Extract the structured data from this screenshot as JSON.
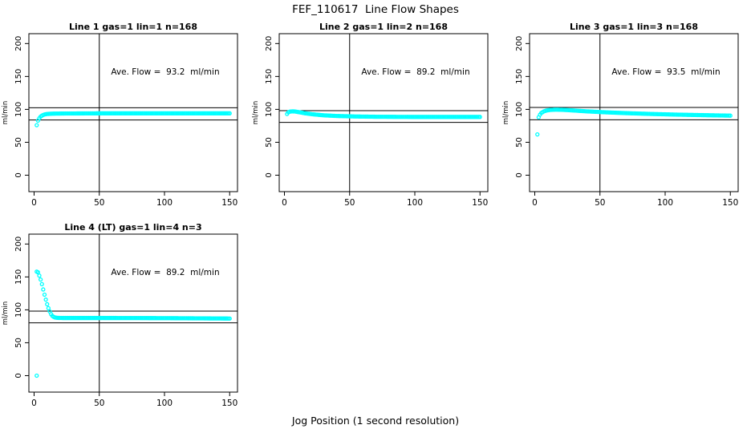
{
  "figure": {
    "title": "FEF_110617  Line Flow Shapes",
    "caption": "Jog Position (1 second resolution)",
    "colors": {
      "marker": "#00FFFF",
      "axis": "#000000",
      "background": "#FFFFFF"
    }
  },
  "chart_data": [
    {
      "type": "scatter",
      "title": "Line 1 gas=1 lin=1 n=168",
      "ave_flow": 93.2,
      "ave_flow_label": "Ave. Flow =  93.2  ml/min",
      "ylabel": "ml/min",
      "xticks": [
        0,
        50,
        100,
        150
      ],
      "yticks": [
        0,
        50,
        100,
        150,
        200
      ],
      "xlim": [
        -4,
        156
      ],
      "ylim": [
        -25,
        215
      ],
      "vline": 50,
      "hlines": [
        102.5,
        83.9
      ],
      "x_step": 1,
      "keypoints": [
        [
          3,
          83
        ],
        [
          4,
          86.5
        ],
        [
          5,
          89
        ],
        [
          6,
          90.5
        ],
        [
          7,
          91.5
        ],
        [
          8,
          92.3
        ],
        [
          10,
          93
        ],
        [
          14,
          93.5
        ],
        [
          20,
          93.7
        ],
        [
          30,
          93.8
        ],
        [
          50,
          94
        ],
        [
          100,
          94
        ],
        [
          150,
          94
        ]
      ],
      "outliers": [
        [
          2,
          76
        ]
      ]
    },
    {
      "type": "scatter",
      "title": "Line 2 gas=1 lin=2 n=168",
      "ave_flow": 89.2,
      "ave_flow_label": "Ave. Flow =  89.2  ml/min",
      "ylabel": "ml/min",
      "xticks": [
        0,
        50,
        100,
        150
      ],
      "yticks": [
        0,
        50,
        100,
        150,
        200
      ],
      "xlim": [
        -4,
        156
      ],
      "ylim": [
        -25,
        215
      ],
      "vline": 50,
      "hlines": [
        98.1,
        80.3
      ],
      "x_step": 1,
      "keypoints": [
        [
          2,
          93
        ],
        [
          3,
          95.5
        ],
        [
          4,
          96.5
        ],
        [
          6,
          97
        ],
        [
          8,
          96.8
        ],
        [
          12,
          95.5
        ],
        [
          16,
          94
        ],
        [
          22,
          92.5
        ],
        [
          30,
          91
        ],
        [
          40,
          90
        ],
        [
          55,
          89.2
        ],
        [
          70,
          88.8
        ],
        [
          100,
          88.5
        ],
        [
          150,
          88.5
        ]
      ],
      "outliers": []
    },
    {
      "type": "scatter",
      "title": "Line 3 gas=1 lin=3 n=168",
      "ave_flow": 93.5,
      "ave_flow_label": "Ave. Flow =  93.5  ml/min",
      "ylabel": "ml/min",
      "xticks": [
        0,
        50,
        100,
        150
      ],
      "yticks": [
        0,
        50,
        100,
        150,
        200
      ],
      "xlim": [
        -4,
        156
      ],
      "ylim": [
        -25,
        215
      ],
      "vline": 50,
      "hlines": [
        102.9,
        84.2
      ],
      "x_step": 1,
      "keypoints": [
        [
          3,
          88
        ],
        [
          4,
          92
        ],
        [
          5,
          94.5
        ],
        [
          7,
          97
        ],
        [
          9,
          98.3
        ],
        [
          12,
          99.2
        ],
        [
          16,
          99.6
        ],
        [
          22,
          99.3
        ],
        [
          30,
          98.3
        ],
        [
          40,
          97
        ],
        [
          55,
          95.5
        ],
        [
          70,
          94.3
        ],
        [
          90,
          93
        ],
        [
          110,
          92
        ],
        [
          130,
          91.2
        ],
        [
          150,
          90.5
        ]
      ],
      "outliers": [
        [
          2,
          62
        ]
      ]
    },
    {
      "type": "scatter",
      "title": "Line 4 (LT) gas=1 lin=4 n=3",
      "ave_flow": 89.2,
      "ave_flow_label": "Ave. Flow =  89.2  ml/min",
      "ylabel": "ml/min",
      "xticks": [
        0,
        50,
        100,
        150
      ],
      "yticks": [
        0,
        50,
        100,
        150,
        200
      ],
      "xlim": [
        -4,
        156
      ],
      "ylim": [
        -25,
        215
      ],
      "vline": 50,
      "hlines": [
        98.1,
        80.3
      ],
      "x_step": 1,
      "keypoints": [
        [
          2,
          158
        ],
        [
          3,
          157
        ],
        [
          4,
          152
        ],
        [
          5,
          146
        ],
        [
          6,
          139
        ],
        [
          7,
          131
        ],
        [
          8,
          123
        ],
        [
          9,
          115.5
        ],
        [
          10,
          108.5
        ],
        [
          11,
          102.5
        ],
        [
          12,
          97.5
        ],
        [
          13,
          93.5
        ],
        [
          14,
          90.8
        ],
        [
          15,
          89.3
        ],
        [
          16,
          88.4
        ],
        [
          18,
          87.8
        ],
        [
          22,
          87.6
        ],
        [
          30,
          87.6
        ],
        [
          60,
          87.6
        ],
        [
          100,
          87.4
        ],
        [
          150,
          86.8
        ]
      ],
      "outliers": [
        [
          2,
          0
        ]
      ]
    }
  ]
}
